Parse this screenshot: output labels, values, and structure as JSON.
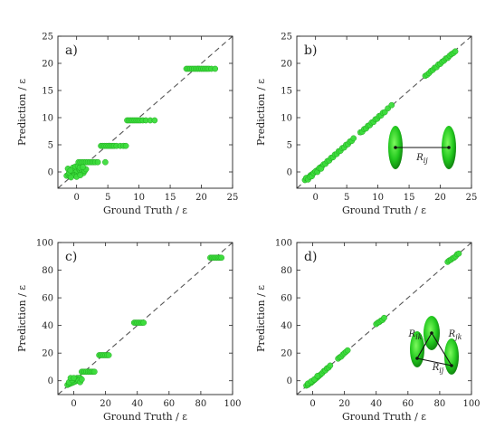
{
  "chart_data": [
    {
      "type": "scatter",
      "panel": "a)",
      "xlabel": "Ground Truth / ε",
      "ylabel": "Prediction / ε",
      "xlim": [
        -3,
        25
      ],
      "ylim": [
        -3,
        25
      ],
      "xticks": [
        0,
        5,
        10,
        15,
        20,
        25
      ],
      "yticks": [
        0,
        5,
        10,
        15,
        20,
        25
      ],
      "reference_line": "y = x (dashed)",
      "points": [
        [
          -1.6,
          -0.7
        ],
        [
          -1.3,
          -0.5
        ],
        [
          -1.1,
          -0.8
        ],
        [
          -0.9,
          -0.3
        ],
        [
          -0.7,
          -0.6
        ],
        [
          -0.5,
          -0.2
        ],
        [
          -0.3,
          -0.5
        ],
        [
          -0.1,
          -0.1
        ],
        [
          0.1,
          -0.4
        ],
        [
          0.3,
          0.0
        ],
        [
          -1.2,
          -0.1
        ],
        [
          -0.8,
          0.2
        ],
        [
          -0.4,
          0.4
        ],
        [
          0.0,
          0.3
        ],
        [
          0.4,
          0.5
        ],
        [
          0.6,
          0.2
        ],
        [
          0.8,
          0.4
        ],
        [
          -0.6,
          0.8
        ],
        [
          -0.2,
          1.0
        ],
        [
          0.2,
          1.1
        ],
        [
          0.5,
          0.8
        ],
        [
          -1.4,
          0.6
        ],
        [
          -1.0,
          0.3
        ],
        [
          0.9,
          0.0
        ],
        [
          1.1,
          -0.2
        ],
        [
          1.3,
          0.2
        ],
        [
          -0.9,
          -1.0
        ],
        [
          0.0,
          -0.9
        ],
        [
          0.6,
          -0.6
        ],
        [
          1.5,
          0.5
        ],
        [
          0.3,
          1.8
        ],
        [
          0.6,
          1.8
        ],
        [
          0.9,
          1.8
        ],
        [
          1.2,
          1.8
        ],
        [
          1.5,
          1.8
        ],
        [
          1.8,
          1.8
        ],
        [
          2.1,
          1.8
        ],
        [
          2.4,
          1.8
        ],
        [
          2.7,
          1.8
        ],
        [
          3.0,
          1.8
        ],
        [
          3.4,
          1.8
        ],
        [
          1.0,
          0.9
        ],
        [
          3.9,
          4.8
        ],
        [
          4.2,
          4.8
        ],
        [
          4.5,
          4.8
        ],
        [
          4.8,
          4.8
        ],
        [
          5.1,
          4.8
        ],
        [
          5.4,
          4.8
        ],
        [
          5.7,
          4.8
        ],
        [
          6.0,
          4.8
        ],
        [
          6.4,
          4.8
        ],
        [
          7.0,
          4.8
        ],
        [
          7.5,
          4.8
        ],
        [
          7.9,
          4.8
        ],
        [
          4.6,
          1.8
        ],
        [
          8.1,
          9.5
        ],
        [
          8.4,
          9.5
        ],
        [
          8.7,
          9.5
        ],
        [
          9.0,
          9.5
        ],
        [
          9.3,
          9.5
        ],
        [
          9.6,
          9.5
        ],
        [
          9.9,
          9.5
        ],
        [
          10.2,
          9.5
        ],
        [
          10.6,
          9.5
        ],
        [
          11.1,
          9.5
        ],
        [
          11.8,
          9.5
        ],
        [
          12.5,
          9.5
        ],
        [
          17.6,
          19.0
        ],
        [
          17.9,
          19.0
        ],
        [
          18.2,
          19.0
        ],
        [
          18.5,
          19.0
        ],
        [
          18.8,
          19.0
        ],
        [
          19.1,
          19.0
        ],
        [
          19.4,
          19.0
        ],
        [
          19.7,
          19.0
        ],
        [
          20.0,
          19.0
        ],
        [
          20.3,
          19.0
        ],
        [
          20.6,
          19.0
        ],
        [
          20.9,
          19.0
        ],
        [
          21.2,
          19.0
        ],
        [
          21.6,
          19.0
        ],
        [
          22.2,
          19.0
        ]
      ]
    },
    {
      "type": "scatter",
      "panel": "b)",
      "xlabel": "Ground Truth / ε",
      "ylabel": "Prediction / ε",
      "xlim": [
        -3,
        25
      ],
      "ylim": [
        -3,
        25
      ],
      "xticks": [
        0,
        5,
        10,
        15,
        20,
        25
      ],
      "yticks": [
        0,
        5,
        10,
        15,
        20,
        25
      ],
      "reference_line": "y = x (dashed)",
      "inset": {
        "shape": "two ellipsoids joined by a line",
        "label": "R_ij"
      },
      "points": [
        [
          -1.7,
          -1.5
        ],
        [
          -1.4,
          -1.2
        ],
        [
          -1.1,
          -1.0
        ],
        [
          -0.8,
          -0.6
        ],
        [
          -0.5,
          -0.4
        ],
        [
          -0.2,
          -0.1
        ],
        [
          0.1,
          0.2
        ],
        [
          0.4,
          0.4
        ],
        [
          0.7,
          0.8
        ],
        [
          1.0,
          1.0
        ],
        [
          -1.5,
          -1.1
        ],
        [
          -1.2,
          -1.4
        ],
        [
          -0.9,
          -0.9
        ],
        [
          -0.6,
          -0.8
        ],
        [
          -0.3,
          -0.2
        ],
        [
          0.0,
          0.1
        ],
        [
          0.3,
          0.0
        ],
        [
          0.6,
          0.7
        ],
        [
          0.9,
          0.6
        ],
        [
          1.3,
          1.4
        ],
        [
          1.6,
          1.5
        ],
        [
          1.9,
          2.0
        ],
        [
          2.2,
          2.1
        ],
        [
          2.5,
          2.6
        ],
        [
          2.8,
          2.7
        ],
        [
          3.1,
          3.2
        ],
        [
          3.4,
          3.3
        ],
        [
          3.7,
          3.8
        ],
        [
          4.0,
          3.9
        ],
        [
          4.3,
          4.4
        ],
        [
          4.6,
          4.5
        ],
        [
          4.9,
          5.0
        ],
        [
          5.2,
          5.1
        ],
        [
          5.5,
          5.6
        ],
        [
          5.8,
          5.7
        ],
        [
          6.1,
          6.2
        ],
        [
          7.2,
          7.3
        ],
        [
          7.5,
          7.4
        ],
        [
          7.8,
          7.9
        ],
        [
          8.1,
          8.0
        ],
        [
          8.4,
          8.5
        ],
        [
          8.7,
          8.6
        ],
        [
          9.0,
          9.1
        ],
        [
          9.3,
          9.2
        ],
        [
          9.6,
          9.7
        ],
        [
          9.9,
          9.8
        ],
        [
          10.2,
          10.3
        ],
        [
          10.5,
          10.4
        ],
        [
          10.8,
          10.9
        ],
        [
          11.1,
          11.0
        ],
        [
          11.6,
          11.7
        ],
        [
          12.2,
          12.3
        ],
        [
          17.6,
          17.7
        ],
        [
          17.9,
          17.9
        ],
        [
          18.2,
          18.2
        ],
        [
          18.5,
          18.6
        ],
        [
          18.8,
          18.8
        ],
        [
          19.1,
          19.2
        ],
        [
          19.4,
          19.3
        ],
        [
          19.7,
          19.8
        ],
        [
          20.0,
          19.9
        ],
        [
          20.3,
          20.3
        ],
        [
          20.6,
          20.5
        ],
        [
          20.9,
          20.9
        ],
        [
          21.2,
          21.0
        ],
        [
          21.5,
          21.4
        ],
        [
          21.8,
          21.7
        ],
        [
          22.1,
          21.9
        ],
        [
          22.4,
          22.2
        ]
      ]
    },
    {
      "type": "scatter",
      "panel": "c)",
      "xlabel": "Ground Truth / ε",
      "ylabel": "Prediction / ε",
      "xlim": [
        -10,
        100
      ],
      "ylim": [
        -10,
        100
      ],
      "xticks": [
        0,
        20,
        40,
        60,
        80,
        100
      ],
      "yticks": [
        0,
        20,
        40,
        60,
        80,
        100
      ],
      "reference_line": "y = x (dashed)",
      "points": [
        [
          -4,
          -3.0
        ],
        [
          -3,
          -2.5
        ],
        [
          -2,
          -2.0
        ],
        [
          -1,
          -1.5
        ],
        [
          0,
          -1.0
        ],
        [
          1,
          -0.5
        ],
        [
          2,
          0.0
        ],
        [
          -3,
          -1.0
        ],
        [
          -1,
          0.5
        ],
        [
          1,
          1.5
        ],
        [
          2,
          2.0
        ],
        [
          3,
          2.0
        ],
        [
          4,
          2.0
        ],
        [
          -2,
          2.0
        ],
        [
          0,
          2.0
        ],
        [
          3,
          0.0
        ],
        [
          4,
          -1.0
        ],
        [
          5,
          1.0
        ],
        [
          5,
          6.5
        ],
        [
          6,
          6.5
        ],
        [
          7,
          6.5
        ],
        [
          8,
          6.5
        ],
        [
          9,
          6.5
        ],
        [
          10,
          6.5
        ],
        [
          11,
          6.5
        ],
        [
          12,
          6.5
        ],
        [
          13,
          6.5
        ],
        [
          16,
          18.5
        ],
        [
          17,
          18.5
        ],
        [
          18,
          18.5
        ],
        [
          19,
          18.5
        ],
        [
          20,
          18.5
        ],
        [
          21,
          18.5
        ],
        [
          22,
          18.5
        ],
        [
          38,
          42.0
        ],
        [
          39,
          42.0
        ],
        [
          40,
          42.0
        ],
        [
          41,
          42.0
        ],
        [
          42,
          42.0
        ],
        [
          43,
          42.0
        ],
        [
          44,
          42.0
        ],
        [
          86,
          89.0
        ],
        [
          87,
          89.0
        ],
        [
          88,
          89.0
        ],
        [
          89,
          89.0
        ],
        [
          90,
          89.0
        ],
        [
          91,
          89.0
        ],
        [
          92,
          89.0
        ],
        [
          93,
          89.0
        ]
      ]
    },
    {
      "type": "scatter",
      "panel": "d)",
      "xlabel": "Ground Truth / ε",
      "ylabel": "Prediction / ε",
      "xlim": [
        -10,
        100
      ],
      "ylim": [
        -10,
        100
      ],
      "xticks": [
        0,
        20,
        40,
        60,
        80,
        100
      ],
      "yticks": [
        0,
        20,
        40,
        60,
        80,
        100
      ],
      "reference_line": "y = x (dashed)",
      "inset": {
        "shape": "three ellipsoids joined in a triangle",
        "labels": [
          "R_ik",
          "R_jk",
          "R_ij"
        ]
      },
      "points": [
        [
          -4,
          -3.5
        ],
        [
          -3,
          -3.0
        ],
        [
          -2,
          -2.0
        ],
        [
          -1,
          -1.5
        ],
        [
          0,
          -0.5
        ],
        [
          1,
          0.5
        ],
        [
          2,
          1.5
        ],
        [
          3,
          2.5
        ],
        [
          4,
          3.5
        ],
        [
          5,
          4.5
        ],
        [
          -3,
          -2.0
        ],
        [
          -1,
          -0.5
        ],
        [
          1,
          1.0
        ],
        [
          3,
          3.5
        ],
        [
          6,
          5.5
        ],
        [
          7,
          7.0
        ],
        [
          8,
          7.5
        ],
        [
          9,
          9.0
        ],
        [
          10,
          9.5
        ],
        [
          11,
          11.0
        ],
        [
          16,
          16.0
        ],
        [
          17,
          17.0
        ],
        [
          18,
          17.5
        ],
        [
          19,
          19.0
        ],
        [
          20,
          20.0
        ],
        [
          21,
          21.0
        ],
        [
          22,
          22.0
        ],
        [
          40,
          41.0
        ],
        [
          41,
          42.0
        ],
        [
          42,
          42.5
        ],
        [
          43,
          43.5
        ],
        [
          44,
          44.0
        ],
        [
          45,
          45.5
        ],
        [
          85,
          86.0
        ],
        [
          86,
          87.0
        ],
        [
          87,
          87.5
        ],
        [
          88,
          88.5
        ],
        [
          89,
          89.0
        ],
        [
          90,
          90.0
        ],
        [
          91,
          91.5
        ],
        [
          92,
          92.0
        ]
      ]
    }
  ]
}
